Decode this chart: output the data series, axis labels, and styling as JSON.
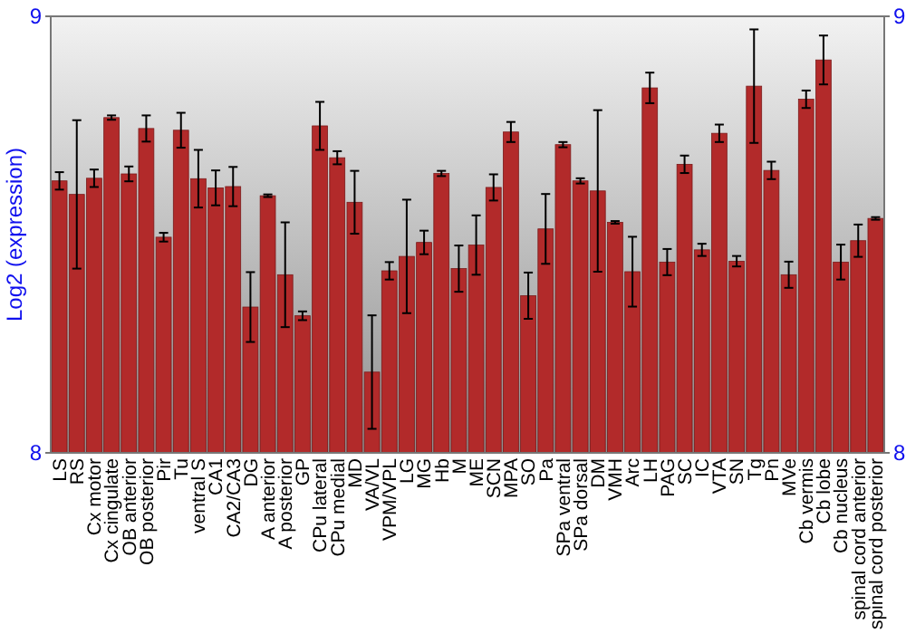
{
  "chart_data": {
    "type": "bar",
    "ylabel": "Log2 (expression)",
    "categories": [
      "LS",
      "RS",
      "Cx motor",
      "Cx cingulate",
      "OB anterior",
      "OB posterior",
      "Pir",
      "Tu",
      "ventral S",
      "CA1",
      "CA2/CA3",
      "DG",
      "A anterior",
      "A posterior",
      "GP",
      "CPu lateral",
      "CPu medial",
      "MD",
      "VA/VL",
      "VPM/VPL",
      "LG",
      "MG",
      "Hb",
      "M",
      "ME",
      "SCN",
      "MPA",
      "SO",
      "Pa",
      "SPa ventral",
      "SPa dorsal",
      "DM",
      "VMH",
      "Arc",
      "LH",
      "PAG",
      "SC",
      "IC",
      "VTA",
      "SN",
      "Tg",
      "Pn",
      "MVe",
      "Cb vermis",
      "Cb lobe",
      "Cb nucleus",
      "spinal cord anterior",
      "spinal cord posterior"
    ],
    "values": [
      8.623,
      8.592,
      8.629,
      8.768,
      8.639,
      8.743,
      8.494,
      8.739,
      8.628,
      8.607,
      8.61,
      8.334,
      8.589,
      8.408,
      8.314,
      8.749,
      8.676,
      8.574,
      8.185,
      8.417,
      8.45,
      8.482,
      8.64,
      8.422,
      8.476,
      8.608,
      8.735,
      8.36,
      8.513,
      8.706,
      8.623,
      8.6,
      8.528,
      8.415,
      8.836,
      8.437,
      8.661,
      8.465,
      8.732,
      8.439,
      8.84,
      8.647,
      8.408,
      8.81,
      8.9,
      8.437,
      8.486,
      8.537
    ],
    "errors": [
      0.02,
      0.17,
      0.02,
      0.005,
      0.017,
      0.03,
      0.01,
      0.04,
      0.066,
      0.04,
      0.045,
      0.08,
      0.003,
      0.12,
      0.01,
      0.055,
      0.015,
      0.072,
      0.13,
      0.02,
      0.13,
      0.027,
      0.006,
      0.053,
      0.068,
      0.03,
      0.023,
      0.053,
      0.08,
      0.006,
      0.006,
      0.185,
      0.003,
      0.08,
      0.035,
      0.03,
      0.02,
      0.014,
      0.02,
      0.012,
      0.13,
      0.02,
      0.03,
      0.02,
      0.056,
      0.04,
      0.037,
      0.003
    ],
    "color": "#b22a2a",
    "ylim": [
      8,
      9
    ],
    "yticks": [
      8,
      9
    ],
    "y2lim": [
      8,
      9
    ],
    "y2ticks": [
      8,
      9
    ]
  }
}
